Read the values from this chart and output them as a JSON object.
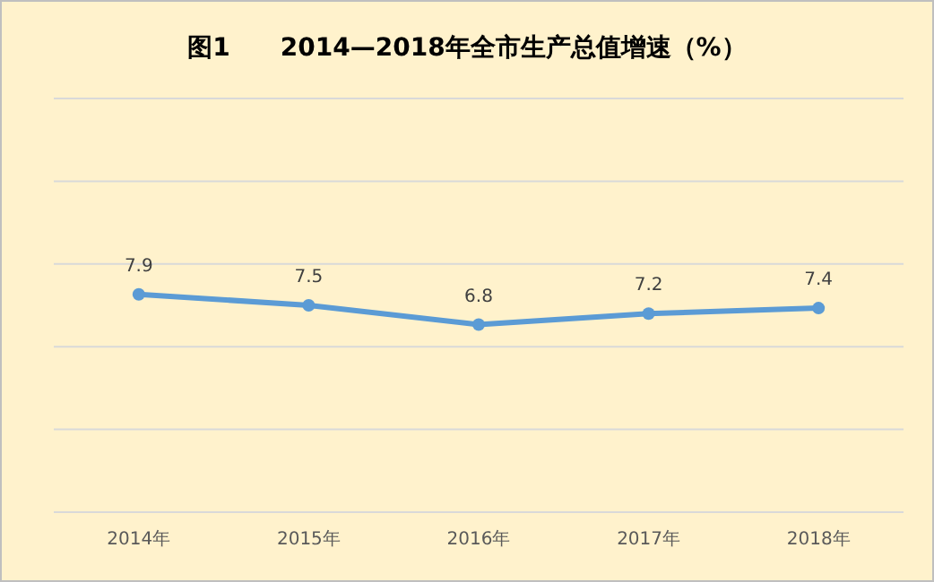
{
  "chart_data": {
    "type": "line",
    "title": "图1　　2014—2018年全市生产总值增速（%）",
    "categories": [
      "2014年",
      "2015年",
      "2016年",
      "2017年",
      "2018年"
    ],
    "series": [
      {
        "color": "#5b9bd5",
        "values": [
          7.9,
          7.5,
          6.8,
          7.2,
          7.4
        ]
      }
    ],
    "ylim": [
      0,
      15
    ],
    "yticks": [
      {
        "value": 0,
        "label": null
      },
      {
        "value": 3,
        "label": null
      },
      {
        "value": 6,
        "label": null
      },
      {
        "value": 9,
        "label": null
      },
      {
        "value": 12,
        "label": null
      },
      {
        "value": 15,
        "label": null
      }
    ],
    "grid": "y",
    "marker": "circle",
    "line_style": "solid",
    "data_labels": true,
    "tick_labels": "x"
  }
}
